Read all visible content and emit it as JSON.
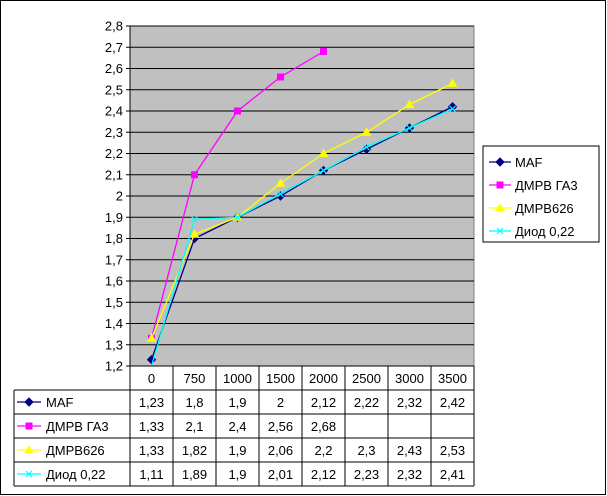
{
  "chart_data": {
    "type": "line",
    "categories": [
      "0",
      "750",
      "1000",
      "1500",
      "2000",
      "2500",
      "3000",
      "3500"
    ],
    "y_ticks": [
      "1,2",
      "1,3",
      "1,4",
      "1,5",
      "1,6",
      "1,7",
      "1,8",
      "1,9",
      "2",
      "2,1",
      "2,2",
      "2,3",
      "2,4",
      "2,5",
      "2,6",
      "2,7",
      "2,8"
    ],
    "ylim": [
      1.2,
      2.8
    ],
    "grid": true,
    "legend_position": "right",
    "plot_background": "#c0c0c0",
    "series": [
      {
        "name": "MAF",
        "color": "#000080",
        "marker": "diamond",
        "values": [
          1.23,
          1.8,
          1.9,
          2,
          2.12,
          2.22,
          2.32,
          2.42
        ],
        "labels": [
          "1,23",
          "1,8",
          "1,9",
          "2",
          "2,12",
          "2,22",
          "2,32",
          "2,42"
        ]
      },
      {
        "name": "ДМРВ ГА3",
        "color": "#ff00ff",
        "marker": "square",
        "values": [
          1.33,
          2.1,
          2.4,
          2.56,
          2.68,
          null,
          null,
          null
        ],
        "labels": [
          "1,33",
          "2,1",
          "2,4",
          "2,56",
          "2,68",
          "",
          "",
          ""
        ]
      },
      {
        "name": "ДМРВ626",
        "color": "#ffff00",
        "marker": "triangle",
        "values": [
          1.33,
          1.82,
          1.9,
          2.06,
          2.2,
          2.3,
          2.43,
          2.53
        ],
        "labels": [
          "1,33",
          "1,82",
          "1,9",
          "2,06",
          "2,2",
          "2,3",
          "2,43",
          "2,53"
        ]
      },
      {
        "name": "Диод 0,22",
        "color": "#00ffff",
        "marker": "x",
        "values": [
          1.11,
          1.89,
          1.9,
          2.01,
          2.12,
          2.23,
          2.32,
          2.41
        ],
        "labels": [
          "1,11",
          "1,89",
          "1,9",
          "2,01",
          "2,12",
          "2,23",
          "2,32",
          "2,41"
        ]
      }
    ]
  }
}
